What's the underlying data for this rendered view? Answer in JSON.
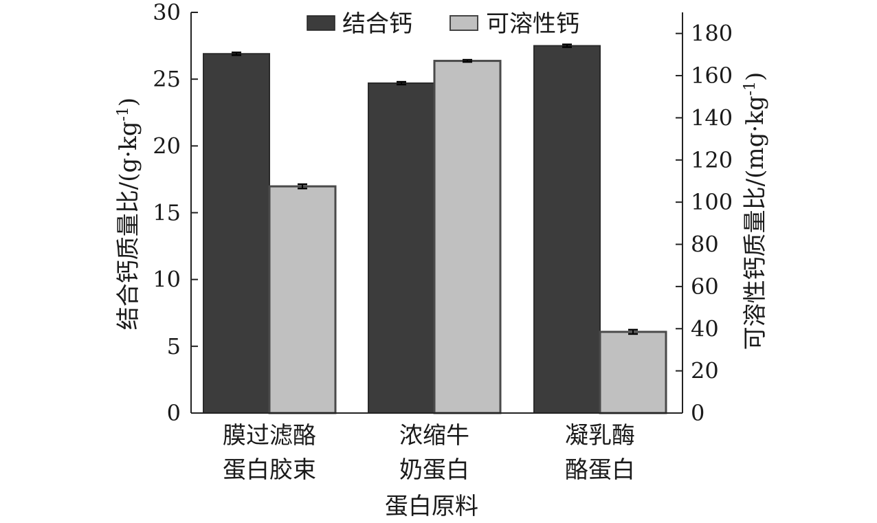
{
  "chart_data": {
    "type": "bar",
    "xlabel": "蛋白原料",
    "categories": [
      [
        "膜过滤酪",
        "蛋白胶束"
      ],
      [
        "浓缩牛",
        "奶蛋白"
      ],
      [
        "凝乳酶",
        "酪蛋白"
      ]
    ],
    "series": [
      {
        "name": "结合钙",
        "axis": "left",
        "values": [
          26.9,
          24.7,
          27.5
        ],
        "errors": [
          0.1,
          0.1,
          0.1
        ],
        "color": "#3c3c3c"
      },
      {
        "name": "可溶性钙",
        "axis": "right",
        "values": [
          107.5,
          167.0,
          38.5
        ],
        "errors": [
          1.0,
          0.5,
          1.0
        ],
        "color": "#c0c0c0"
      }
    ],
    "y_left": {
      "label": [
        "结合钙质量比/(g",
        "·",
        "kg",
        "-1",
        ")"
      ],
      "lim": [
        0,
        30
      ],
      "ticks": [
        0,
        5,
        10,
        15,
        20,
        25,
        30
      ]
    },
    "y_right": {
      "label": [
        "可溶性钙质量比/(mg",
        "·",
        "kg",
        "-1",
        ")"
      ],
      "lim": [
        0,
        190
      ],
      "ticks": [
        0,
        20,
        40,
        60,
        80,
        100,
        120,
        140,
        160,
        180
      ]
    },
    "legend_position": "top-center",
    "grid": false
  }
}
